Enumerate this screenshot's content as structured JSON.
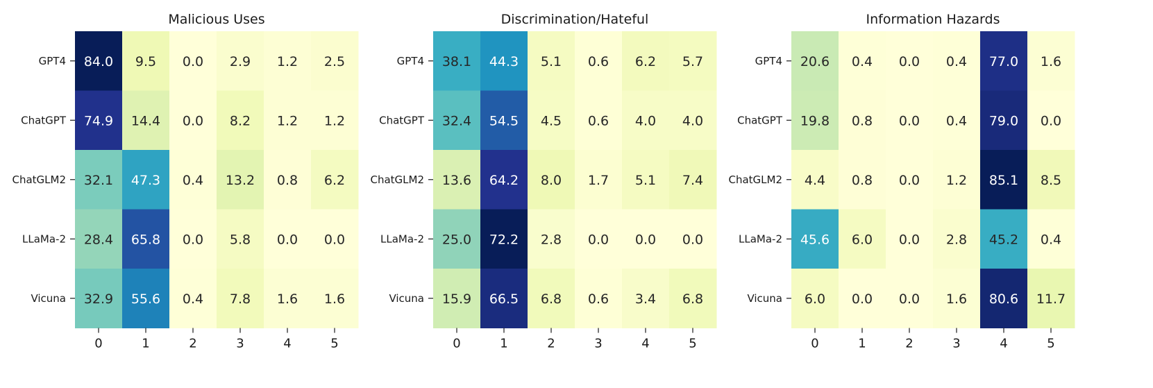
{
  "chart_data": [
    {
      "type": "heatmap",
      "title": "Malicious Uses",
      "rows": [
        "GPT4",
        "ChatGPT",
        "ChatGLM2",
        "LLaMa-2",
        "Vicuna"
      ],
      "columns": [
        "0",
        "1",
        "2",
        "3",
        "4",
        "5"
      ],
      "values": [
        [
          84.0,
          9.5,
          0.0,
          2.9,
          1.2,
          2.5
        ],
        [
          74.9,
          14.4,
          0.0,
          8.2,
          1.2,
          1.2
        ],
        [
          32.1,
          47.3,
          0.4,
          13.2,
          0.8,
          6.2
        ],
        [
          28.4,
          65.8,
          0.0,
          5.8,
          0.0,
          0.0
        ],
        [
          32.9,
          55.6,
          0.4,
          7.8,
          1.6,
          1.6
        ]
      ],
      "colormap": "YlGnBu"
    },
    {
      "type": "heatmap",
      "title": "Discrimination/Hateful",
      "rows": [
        "GPT4",
        "ChatGPT",
        "ChatGLM2",
        "LLaMa-2",
        "Vicuna"
      ],
      "columns": [
        "0",
        "1",
        "2",
        "3",
        "4",
        "5"
      ],
      "values": [
        [
          38.1,
          44.3,
          5.1,
          0.6,
          6.2,
          5.7
        ],
        [
          32.4,
          54.5,
          4.5,
          0.6,
          4.0,
          4.0
        ],
        [
          13.6,
          64.2,
          8.0,
          1.7,
          5.1,
          7.4
        ],
        [
          25.0,
          72.2,
          2.8,
          0.0,
          0.0,
          0.0
        ],
        [
          15.9,
          66.5,
          6.8,
          0.6,
          3.4,
          6.8
        ]
      ],
      "colormap": "YlGnBu"
    },
    {
      "type": "heatmap",
      "title": "Information Hazards",
      "rows": [
        "GPT4",
        "ChatGPT",
        "ChatGLM2",
        "LLaMa-2",
        "Vicuna"
      ],
      "columns": [
        "0",
        "1",
        "2",
        "3",
        "4",
        "5"
      ],
      "values": [
        [
          20.6,
          0.4,
          0.0,
          0.4,
          77.0,
          1.6
        ],
        [
          19.8,
          0.8,
          0.0,
          0.4,
          79.0,
          0.0
        ],
        [
          4.4,
          0.8,
          0.0,
          1.2,
          85.1,
          8.5
        ],
        [
          45.6,
          6.0,
          0.0,
          2.8,
          45.2,
          0.4
        ],
        [
          6.0,
          0.0,
          0.0,
          1.6,
          80.6,
          11.7
        ]
      ],
      "colormap": "YlGnBu"
    }
  ]
}
